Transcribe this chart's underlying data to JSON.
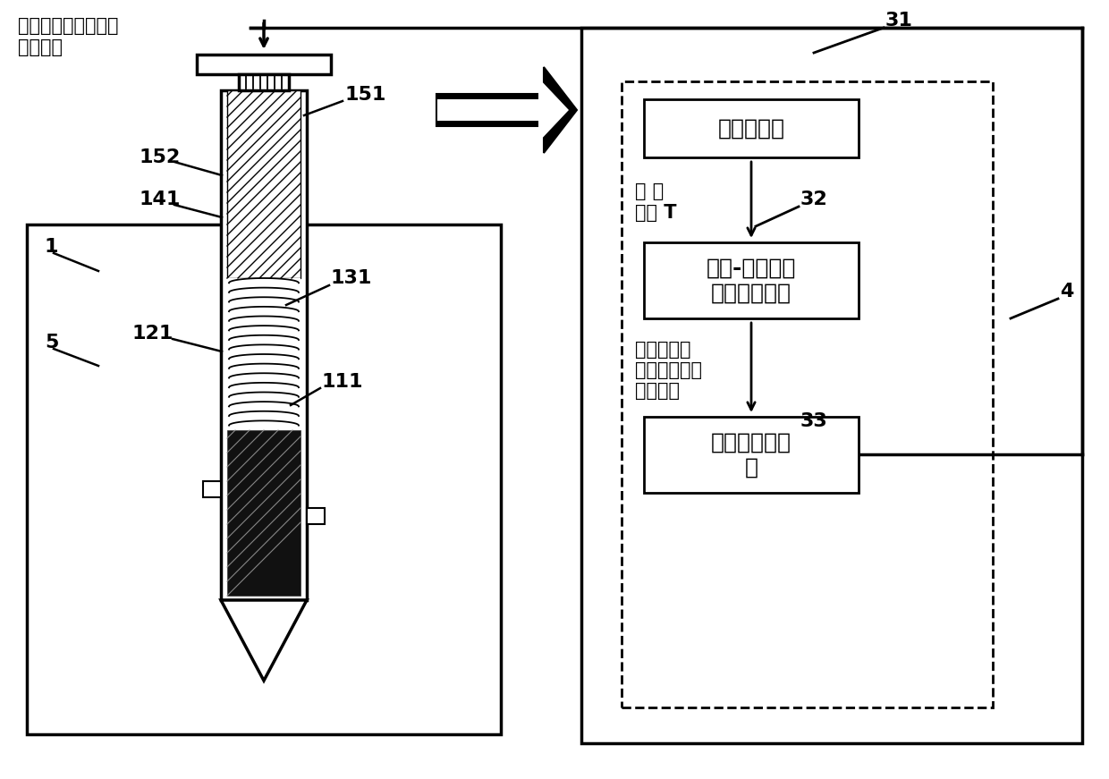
{
  "bg_color": "#ffffff",
  "line_color": "#000000",
  "label_top_left": "钻针转速、进给力、\n进给速度",
  "label_151": "151",
  "label_152": "152",
  "label_141": "141",
  "label_131": "131",
  "label_121": "121",
  "label_111": "111",
  "label_1": "1",
  "label_5": "5",
  "label_31": "31",
  "label_32": "32",
  "label_33": "33",
  "label_4": "4",
  "box1_text": "信号接收器",
  "box2_text": "温度-窝洞制备\n参数数学模型",
  "box3_text": "自适应控制系\n统",
  "label_jiemian": "界 面\n温度 T",
  "label_tuijian": "推荐钻针转\n速、进给力、\n进给速度",
  "font_size_label": 14,
  "font_size_number": 16,
  "font_size_box": 18
}
